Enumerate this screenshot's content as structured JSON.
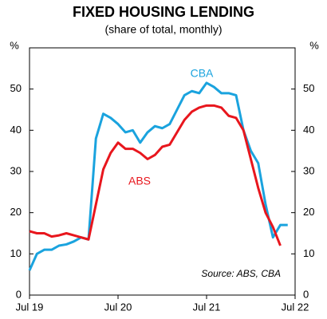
{
  "chart_data": {
    "type": "line",
    "title": "FIXED HOUSING LENDING",
    "subtitle": "(share of total, monthly)",
    "y_label": "%",
    "y2_label": "%",
    "categories": [
      "Jul 19",
      null,
      null,
      null,
      null,
      null,
      null,
      null,
      null,
      null,
      null,
      null,
      "Jul 20",
      null,
      null,
      null,
      null,
      null,
      null,
      null,
      null,
      null,
      null,
      null,
      "Jul 21",
      null,
      null,
      null,
      null,
      null,
      null,
      null,
      null,
      null,
      null,
      null,
      "Jul 22"
    ],
    "series": [
      {
        "name": "CBA",
        "color": "#1aa3de",
        "values": [
          6,
          10,
          11,
          11,
          12,
          12.3,
          13,
          14,
          13.5,
          38,
          44,
          43,
          41.5,
          39.5,
          40,
          37,
          39.5,
          41,
          40.5,
          41.5,
          45,
          48.5,
          49.5,
          49,
          51.5,
          50.5,
          49,
          49,
          48.5,
          40,
          35,
          32,
          22,
          14,
          17,
          17,
          null
        ]
      },
      {
        "name": "ABS",
        "color": "#e8161d",
        "values": [
          15.5,
          15,
          15,
          14.2,
          14.5,
          15,
          14.5,
          14,
          13.5,
          22,
          30.5,
          34.5,
          37,
          35.5,
          35.5,
          34.5,
          33,
          34,
          36,
          36.5,
          39.5,
          42.5,
          44.5,
          45.5,
          46,
          46,
          45.5,
          43.5,
          43,
          40,
          33,
          26,
          20,
          16.5,
          12,
          null,
          null
        ]
      }
    ],
    "ylim": [
      0,
      60
    ],
    "yticks": [
      0,
      10,
      20,
      30,
      40,
      50
    ],
    "y2lim": [
      0,
      60
    ],
    "y2ticks": [
      0,
      10,
      20,
      30,
      40,
      50
    ],
    "annotation": "Source: ABS, CBA"
  }
}
